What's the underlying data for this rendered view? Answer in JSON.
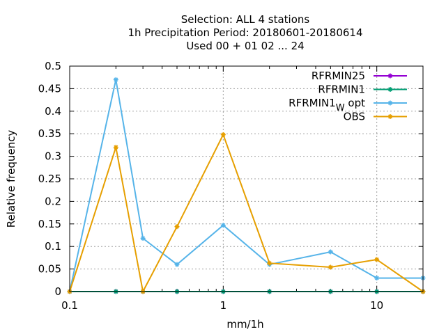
{
  "chart_data": {
    "type": "line",
    "title_lines": [
      "Selection: ALL      4 stations",
      "1h Precipitation  Period: 20180601-20180614",
      "Used  00 + 01 02 ... 24"
    ],
    "xlabel": "mm/1h",
    "ylabel": "Relative frequency",
    "x_scale": "log",
    "xlim": [
      0.1,
      20
    ],
    "ylim": [
      0,
      0.5
    ],
    "x_ticks": [
      {
        "value": 0.1,
        "label": "0.1"
      },
      {
        "value": 1,
        "label": "1"
      },
      {
        "value": 10,
        "label": "10"
      }
    ],
    "y_ticks": [
      {
        "value": 0,
        "label": "0"
      },
      {
        "value": 0.05,
        "label": "0.05"
      },
      {
        "value": 0.1,
        "label": "0.1"
      },
      {
        "value": 0.15,
        "label": "0.15"
      },
      {
        "value": 0.2,
        "label": "0.2"
      },
      {
        "value": 0.25,
        "label": "0.25"
      },
      {
        "value": 0.3,
        "label": "0.3"
      },
      {
        "value": 0.35,
        "label": "0.35"
      },
      {
        "value": 0.4,
        "label": "0.4"
      },
      {
        "value": 0.45,
        "label": "0.45"
      },
      {
        "value": 0.5,
        "label": "0.5"
      }
    ],
    "grid": true,
    "legend_position": "top-right",
    "series": [
      {
        "name": "RFRMIN25",
        "color": "#9400d3",
        "x": [
          0.1,
          0.2,
          0.3,
          0.5,
          1,
          2,
          5,
          10,
          20
        ],
        "y": [
          0,
          0,
          0,
          0,
          0,
          0,
          0,
          0,
          0
        ]
      },
      {
        "name": "RFRMIN1",
        "color": "#009e73",
        "x": [
          0.1,
          0.2,
          0.3,
          0.5,
          1,
          2,
          5,
          10,
          20
        ],
        "y": [
          0,
          0,
          0,
          0,
          0,
          0,
          0,
          0,
          0
        ]
      },
      {
        "name": "RFRMIN1",
        "name_subscript": "W",
        "name_suffix": " opt",
        "color": "#56b4e9",
        "x": [
          0.1,
          0.2,
          0.3,
          0.5,
          1,
          2,
          5,
          10,
          20
        ],
        "y": [
          0,
          0.47,
          0.118,
          0.06,
          0.147,
          0.06,
          0.088,
          0.03,
          0.03
        ]
      },
      {
        "name": "OBS",
        "color": "#e69f00",
        "x": [
          0.1,
          0.2,
          0.3,
          0.5,
          1,
          2,
          5,
          10,
          20
        ],
        "y": [
          0,
          0.32,
          0,
          0.144,
          0.348,
          0.063,
          0.054,
          0.071,
          0
        ]
      }
    ]
  }
}
